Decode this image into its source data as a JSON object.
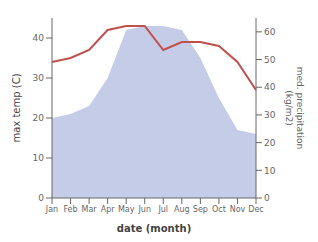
{
  "chart_data": {
    "type": "line",
    "categories": [
      "Jan",
      "Feb",
      "Mar",
      "Apr",
      "May",
      "Jun",
      "Jul",
      "Aug",
      "Sep",
      "Oct",
      "Nov",
      "Dec"
    ],
    "series": [
      {
        "type": "area",
        "color": "#c5cce8",
        "values": [
          20,
          21,
          23,
          30,
          42,
          43,
          43,
          42,
          35,
          25,
          17,
          16
        ]
      },
      {
        "type": "line",
        "color": "#c0504d",
        "values": [
          34,
          35,
          37,
          42,
          43,
          43,
          37,
          39,
          39,
          38,
          34,
          27
        ]
      }
    ],
    "xlabel": "date (month)",
    "ylabel": "max temp (C)",
    "y2label": "med. precipitation\n(kg/m2)",
    "ylim": [
      0,
      45
    ],
    "yticks": [
      0,
      10,
      20,
      30,
      40
    ],
    "y2lim": [
      0,
      65
    ],
    "y2ticks": [
      0,
      10,
      20,
      30,
      40,
      50,
      60
    ],
    "grid": false
  }
}
